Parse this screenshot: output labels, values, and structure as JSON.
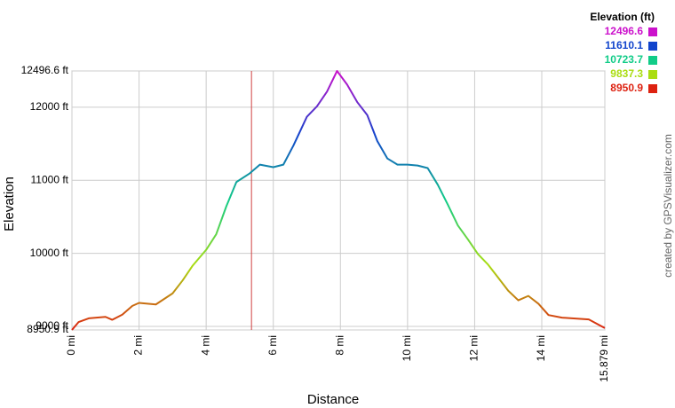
{
  "chart_data": {
    "type": "line",
    "x_label": "Distance",
    "y_label": "Elevation",
    "credit": "created by GPSVisualizer.com",
    "x": [
      0,
      0.2,
      0.5,
      1.0,
      1.2,
      1.5,
      1.8,
      2.0,
      2.5,
      3.0,
      3.3,
      3.6,
      4.0,
      4.3,
      4.6,
      4.9,
      5.3,
      5.6,
      6.0,
      6.3,
      6.6,
      7.0,
      7.3,
      7.6,
      7.9,
      8.2,
      8.5,
      8.8,
      9.1,
      9.4,
      9.7,
      10.0,
      10.3,
      10.6,
      10.9,
      11.2,
      11.5,
      11.8,
      12.1,
      12.4,
      12.7,
      13.0,
      13.3,
      13.6,
      13.9,
      14.2,
      14.6,
      15.0,
      15.4,
      15.879
    ],
    "values": [
      8950.9,
      9060,
      9110,
      9130,
      9090,
      9160,
      9280,
      9321,
      9300,
      9452,
      9630,
      9833,
      10048,
      10262,
      10643,
      10976,
      11095,
      11214,
      11179,
      11214,
      11476,
      11869,
      12012,
      12214,
      12496.6,
      12310,
      12071,
      11893,
      11536,
      11298,
      11214,
      11214,
      11202,
      11167,
      10940,
      10667,
      10381,
      10190,
      9988,
      9845,
      9667,
      9488,
      9357,
      9417,
      9310,
      9155,
      9119,
      9107,
      9095,
      8976
    ],
    "xlim": [
      0,
      15.879
    ],
    "ylim": [
      8950.9,
      12496.6
    ],
    "xticks": [
      {
        "value": 0,
        "label": "0 mi"
      },
      {
        "value": 2,
        "label": "2 mi"
      },
      {
        "value": 4,
        "label": "4 mi"
      },
      {
        "value": 6,
        "label": "6 mi"
      },
      {
        "value": 8,
        "label": "8 mi"
      },
      {
        "value": 10,
        "label": "10 mi"
      },
      {
        "value": 12,
        "label": "12 mi"
      },
      {
        "value": 14,
        "label": "14 mi"
      },
      {
        "value": 15.879,
        "label": "15.879 mi"
      }
    ],
    "yticks": [
      {
        "value": 8950.9,
        "label": "8950.9 ft"
      },
      {
        "value": 9000,
        "label": "9000 ft"
      },
      {
        "value": 10000,
        "label": "10000 ft"
      },
      {
        "value": 11000,
        "label": "11000 ft"
      },
      {
        "value": 12000,
        "label": "12000 ft"
      },
      {
        "value": 12496.6,
        "label": "12496.6 ft"
      }
    ],
    "grid": true,
    "marker_x": 5.35,
    "marker_color": "#d04040",
    "color_scale": {
      "title": "Elevation (ft)",
      "stops": [
        {
          "value": 12496.6,
          "color": "#cc11cc"
        },
        {
          "value": 11610.1,
          "color": "#1144cc"
        },
        {
          "value": 10723.7,
          "color": "#11cc88"
        },
        {
          "value": 9837.3,
          "color": "#aadd11"
        },
        {
          "value": 8950.9,
          "color": "#dd2211"
        }
      ]
    }
  }
}
